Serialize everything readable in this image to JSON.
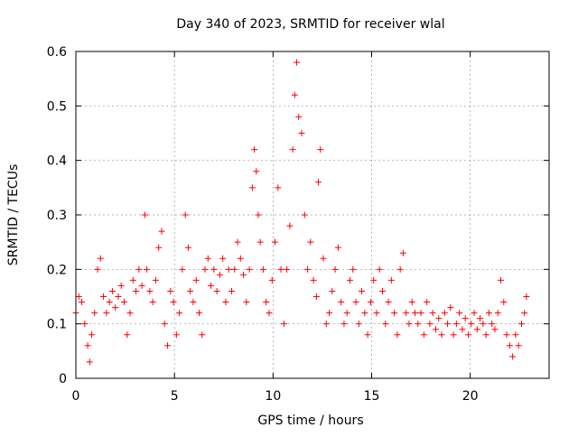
{
  "chart_data": {
    "type": "scatter",
    "title": "Day 340 of 2023, SRMTID for receiver wlal",
    "xlabel": "GPS time / hours",
    "ylabel": "SRMTID / TECUs",
    "xlim": [
      0,
      24
    ],
    "ylim": [
      0,
      0.6
    ],
    "xticks": [
      0,
      5,
      10,
      15,
      20
    ],
    "xtick_labels": [
      "0",
      "5",
      "10",
      "15",
      "20"
    ],
    "yticks": [
      0,
      0.1,
      0.2,
      0.3,
      0.4,
      0.5,
      0.6
    ],
    "ytick_labels": [
      "0",
      "0.1",
      "0.2",
      "0.3",
      "0.4",
      "0.5",
      "0.6"
    ],
    "grid": true,
    "marker": "+",
    "series": [
      {
        "name": "SRMTID",
        "color": "#ff0000",
        "x": [
          0.0,
          0.15,
          0.3,
          0.45,
          0.6,
          0.7,
          0.8,
          0.95,
          1.1,
          1.25,
          1.4,
          1.55,
          1.7,
          1.85,
          2.0,
          2.15,
          2.3,
          2.45,
          2.6,
          2.75,
          2.9,
          3.05,
          3.2,
          3.35,
          3.5,
          3.6,
          3.75,
          3.9,
          4.05,
          4.2,
          4.35,
          4.5,
          4.65,
          4.8,
          4.95,
          5.1,
          5.25,
          5.4,
          5.55,
          5.7,
          5.8,
          5.95,
          6.1,
          6.25,
          6.4,
          6.55,
          6.7,
          6.85,
          7.0,
          7.15,
          7.3,
          7.45,
          7.6,
          7.75,
          7.9,
          8.05,
          8.2,
          8.35,
          8.5,
          8.65,
          8.8,
          8.95,
          9.05,
          9.15,
          9.25,
          9.35,
          9.5,
          9.65,
          9.8,
          9.95,
          10.1,
          10.25,
          10.4,
          10.55,
          10.7,
          10.85,
          11.0,
          11.1,
          11.2,
          11.3,
          11.45,
          11.6,
          11.75,
          11.9,
          12.05,
          12.2,
          12.3,
          12.4,
          12.55,
          12.7,
          12.85,
          13.0,
          13.15,
          13.3,
          13.45,
          13.6,
          13.75,
          13.9,
          14.05,
          14.2,
          14.35,
          14.5,
          14.65,
          14.8,
          14.95,
          15.1,
          15.25,
          15.4,
          15.55,
          15.7,
          15.85,
          16.0,
          16.15,
          16.3,
          16.45,
          16.6,
          16.75,
          16.9,
          17.05,
          17.2,
          17.35,
          17.5,
          17.65,
          17.8,
          17.95,
          18.1,
          18.25,
          18.4,
          18.55,
          18.7,
          18.85,
          19.0,
          19.15,
          19.3,
          19.45,
          19.6,
          19.75,
          19.9,
          20.05,
          20.2,
          20.35,
          20.5,
          20.65,
          20.8,
          20.95,
          21.1,
          21.25,
          21.4,
          21.55,
          21.7,
          21.85,
          22.0,
          22.15,
          22.3,
          22.45,
          22.6,
          22.75,
          22.85
        ],
        "y": [
          0.12,
          0.15,
          0.14,
          0.1,
          0.06,
          0.03,
          0.08,
          0.12,
          0.2,
          0.22,
          0.15,
          0.12,
          0.14,
          0.16,
          0.13,
          0.15,
          0.17,
          0.14,
          0.08,
          0.12,
          0.18,
          0.16,
          0.2,
          0.17,
          0.3,
          0.2,
          0.16,
          0.14,
          0.18,
          0.24,
          0.27,
          0.1,
          0.06,
          0.16,
          0.14,
          0.08,
          0.12,
          0.2,
          0.3,
          0.24,
          0.16,
          0.14,
          0.18,
          0.12,
          0.08,
          0.2,
          0.22,
          0.17,
          0.2,
          0.16,
          0.19,
          0.22,
          0.14,
          0.2,
          0.16,
          0.2,
          0.25,
          0.22,
          0.19,
          0.14,
          0.2,
          0.35,
          0.42,
          0.38,
          0.3,
          0.25,
          0.2,
          0.14,
          0.12,
          0.18,
          0.25,
          0.35,
          0.2,
          0.1,
          0.2,
          0.28,
          0.42,
          0.52,
          0.58,
          0.48,
          0.45,
          0.3,
          0.2,
          0.25,
          0.18,
          0.15,
          0.36,
          0.42,
          0.22,
          0.1,
          0.12,
          0.16,
          0.2,
          0.24,
          0.14,
          0.1,
          0.12,
          0.18,
          0.2,
          0.14,
          0.1,
          0.16,
          0.12,
          0.08,
          0.14,
          0.18,
          0.12,
          0.2,
          0.16,
          0.1,
          0.14,
          0.18,
          0.12,
          0.08,
          0.2,
          0.23,
          0.12,
          0.1,
          0.14,
          0.12,
          0.1,
          0.12,
          0.08,
          0.14,
          0.1,
          0.12,
          0.09,
          0.11,
          0.08,
          0.12,
          0.1,
          0.13,
          0.08,
          0.1,
          0.12,
          0.09,
          0.11,
          0.08,
          0.1,
          0.12,
          0.09,
          0.11,
          0.1,
          0.08,
          0.12,
          0.1,
          0.09,
          0.12,
          0.18,
          0.14,
          0.08,
          0.06,
          0.04,
          0.08,
          0.06,
          0.1,
          0.12,
          0.15
        ]
      }
    ]
  }
}
